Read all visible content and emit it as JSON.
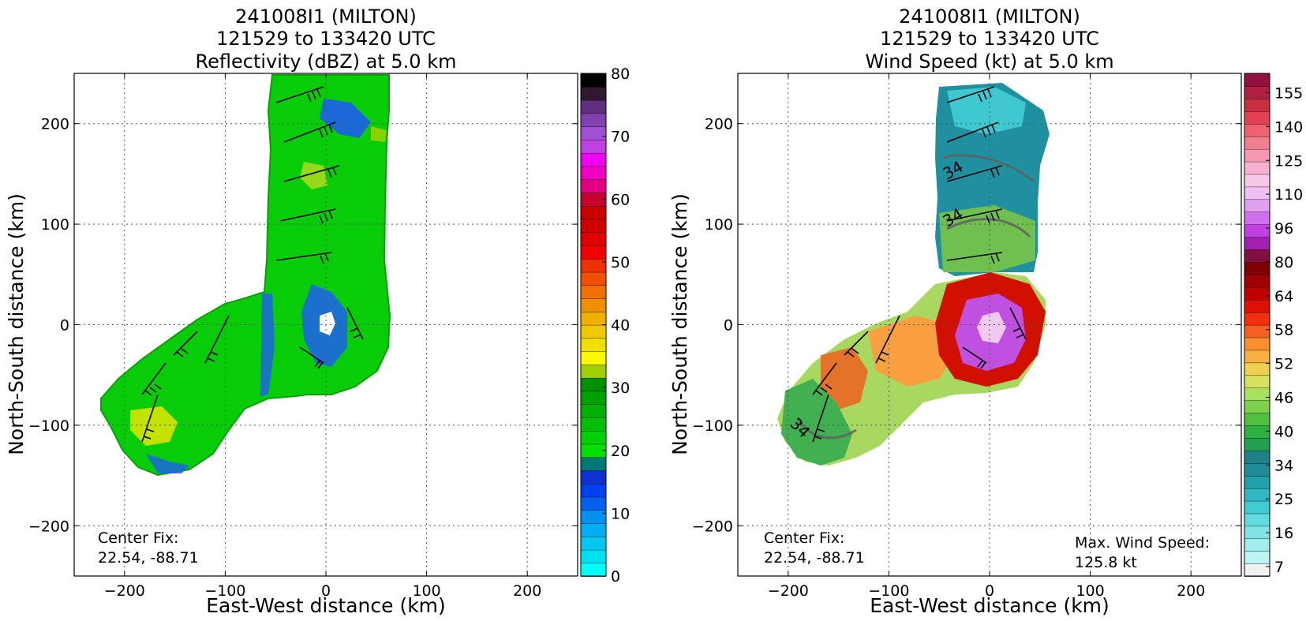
{
  "figure": {
    "panels": [
      {
        "id": "reflectivity",
        "title": [
          "241008I1 (MILTON)",
          "121529 to 133420 UTC",
          "Reflectivity (dBZ) at 5.0 km"
        ],
        "xlabel": "East-West distance (km)",
        "ylabel": "North-South distance (km)",
        "xlim": [
          -250,
          250
        ],
        "ylim": [
          -250,
          250
        ],
        "xticks": [
          -200,
          -100,
          0,
          100,
          200
        ],
        "yticks": [
          -200,
          -100,
          0,
          100,
          200
        ],
        "xtick_labels": [
          "−200",
          "−100",
          "0",
          "100",
          "200"
        ],
        "ytick_labels": [
          "−200",
          "−100",
          "0",
          "100",
          "200"
        ],
        "grid": true,
        "annotations": {
          "center_fix_label": "Center Fix:",
          "center_fix_value": "22.54, -88.71"
        },
        "colorbar": {
          "ticks": [
            0,
            10,
            20,
            30,
            40,
            50,
            60,
            70,
            80
          ],
          "tick_labels": [
            "0",
            "10",
            "20",
            "30",
            "40",
            "50",
            "60",
            "70",
            "80"
          ],
          "colors": [
            "#00ffff",
            "#00e0f0",
            "#00c8f0",
            "#00b0f0",
            "#0090f0",
            "#0060f0",
            "#0040f0",
            "#1030d0",
            "#007878",
            "#00e000",
            "#00d000",
            "#00c000",
            "#00b000",
            "#00a000",
            "#009000",
            "#a0d000",
            "#f8f800",
            "#f0e000",
            "#f0c800",
            "#f0b000",
            "#f09000",
            "#f07000",
            "#f05000",
            "#f03000",
            "#f00000",
            "#e00000",
            "#d00000",
            "#c80000",
            "#c80030",
            "#e00080",
            "#f000c0",
            "#f000f0",
            "#c040e0",
            "#a050d0",
            "#8040b0",
            "#603080",
            "#301830",
            "#000000"
          ]
        }
      },
      {
        "id": "wind-speed",
        "title": [
          "241008I1 (MILTON)",
          "121529 to 133420 UTC",
          "Wind Speed (kt) at 5.0 km"
        ],
        "xlabel": "East-West distance (km)",
        "ylabel": "North-South distance (km)",
        "xlim": [
          -250,
          250
        ],
        "ylim": [
          -250,
          250
        ],
        "xticks": [
          -200,
          -100,
          0,
          100,
          200
        ],
        "yticks": [
          -200,
          -100,
          0,
          100,
          200
        ],
        "xtick_labels": [
          "−200",
          "−100",
          "0",
          "100",
          "200"
        ],
        "ytick_labels": [
          "−200",
          "−100",
          "0",
          "100",
          "200"
        ],
        "grid": true,
        "annotations": {
          "center_fix_label": "Center Fix:",
          "center_fix_value": "22.54, -88.71",
          "max_wind_label": "Max. Wind Speed:",
          "max_wind_value": "125.8 kt",
          "contour_label": "34"
        },
        "colorbar": {
          "tick_labels": [
            "7",
            "16",
            "25",
            "34",
            "40",
            "46",
            "52",
            "58",
            "64",
            "80",
            "96",
            "110",
            "125",
            "140",
            "155"
          ],
          "colors": [
            "#f0f0f0",
            "#c0f4f4",
            "#a0ecec",
            "#80e4e4",
            "#60dce0",
            "#40ccd0",
            "#30b8c0",
            "#20a0a8",
            "#208c98",
            "#208088",
            "#20a050",
            "#30b040",
            "#50c040",
            "#80d050",
            "#a8e060",
            "#d8e060",
            "#f0d050",
            "#f8b040",
            "#f89030",
            "#f86020",
            "#f03010",
            "#e01000",
            "#c00000",
            "#a00000",
            "#800000",
            "#801040",
            "#a020b0",
            "#c040e0",
            "#d070f0",
            "#e0a0f0",
            "#f0c0f0",
            "#f8c8e8",
            "#f8b0d0",
            "#f898b0",
            "#f08090",
            "#f06070",
            "#e04050",
            "#c83040",
            "#b02040",
            "#901040"
          ]
        }
      }
    ]
  }
}
